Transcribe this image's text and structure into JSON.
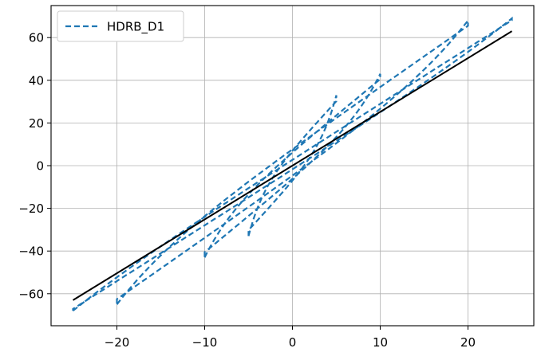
{
  "chart_data": {
    "type": "line",
    "title": "",
    "xlabel": "",
    "ylabel": "",
    "xlim": [
      -27.5,
      27.5
    ],
    "ylim": [
      -75,
      75
    ],
    "xticks": [
      -20,
      -10,
      0,
      10,
      20
    ],
    "yticks": [
      -60,
      -40,
      -20,
      0,
      20,
      40,
      60
    ],
    "xtick_labels": [
      "−20",
      "−10",
      "0",
      "10",
      "20"
    ],
    "ytick_labels": [
      "−60",
      "−40",
      "−20",
      "0",
      "20",
      "40",
      "60"
    ],
    "grid": true,
    "legend": {
      "location": "top-left",
      "entries": [
        "HDRB_D1"
      ]
    },
    "series": [
      {
        "name": "HDRB_D1",
        "style": "dashed",
        "color": "#1f77b4",
        "description_cycles": [
          {
            "amplitude": 5,
            "force_at_peak": 33,
            "force_at_neg_peak": -33
          },
          {
            "amplitude": 10,
            "force_at_peak": 43,
            "force_at_neg_peak": -43
          },
          {
            "amplitude": 20,
            "force_at_peak": 68,
            "force_at_neg_peak": -65
          },
          {
            "amplitude": 25,
            "force_at_peak": 69,
            "force_at_neg_peak": -68
          }
        ]
      },
      {
        "name": "",
        "style": "solid",
        "color": "#000000",
        "x": [
          -25,
          25
        ],
        "y": [
          -63,
          63
        ]
      }
    ]
  }
}
